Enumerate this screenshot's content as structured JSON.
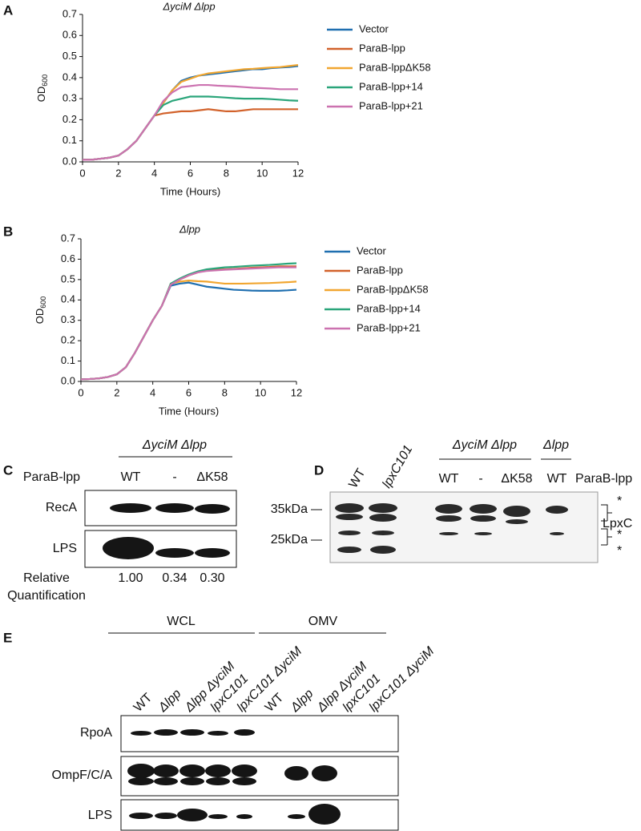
{
  "chart_data": [
    {
      "type": "line",
      "panel": "A",
      "title": "ΔyciM Δlpp",
      "xlabel": "Time (Hours)",
      "ylabel": "OD",
      "ylabel_sub": "600",
      "x": [
        0,
        0.5,
        1,
        1.5,
        2,
        2.5,
        3,
        3.5,
        4,
        4.5,
        5,
        5.5,
        6,
        6.5,
        7,
        7.5,
        8,
        8.5,
        9,
        9.5,
        10,
        10.5,
        11,
        11.5,
        12
      ],
      "xlim": [
        0,
        12
      ],
      "xticks": [
        0,
        2,
        4,
        6,
        8,
        10,
        12
      ],
      "ylim": [
        0,
        0.7
      ],
      "yticks": [
        {
          "value": 0,
          "label": "0.0"
        },
        0.1,
        0.2,
        0.3,
        0.4,
        0.5,
        0.6,
        0.7
      ],
      "series": [
        {
          "name": "Vector",
          "color": "#1f6fb0",
          "values": [
            0.01,
            0.01,
            0.015,
            0.02,
            0.03,
            0.06,
            0.1,
            0.16,
            0.22,
            0.28,
            0.34,
            0.385,
            0.4,
            0.41,
            0.415,
            0.42,
            0.425,
            0.43,
            0.435,
            0.44,
            0.44,
            0.445,
            0.448,
            0.45,
            0.455
          ]
        },
        {
          "name": "ParaB-lpp",
          "color": "#d2622b",
          "values": [
            0.01,
            0.01,
            0.015,
            0.02,
            0.03,
            0.06,
            0.1,
            0.16,
            0.22,
            0.23,
            0.235,
            0.24,
            0.24,
            0.245,
            0.25,
            0.245,
            0.24,
            0.24,
            0.245,
            0.25,
            0.25,
            0.25,
            0.25,
            0.25,
            0.25
          ]
        },
        {
          "name": "ParaB-lppΔK58",
          "color": "#f1a630",
          "values": [
            0.01,
            0.01,
            0.015,
            0.02,
            0.03,
            0.06,
            0.1,
            0.16,
            0.22,
            0.28,
            0.34,
            0.38,
            0.395,
            0.41,
            0.42,
            0.425,
            0.43,
            0.435,
            0.44,
            0.442,
            0.445,
            0.448,
            0.45,
            0.455,
            0.46
          ]
        },
        {
          "name": "ParaB-lpp+14",
          "color": "#2aa57a",
          "values": [
            0.01,
            0.01,
            0.015,
            0.02,
            0.03,
            0.06,
            0.1,
            0.16,
            0.22,
            0.27,
            0.29,
            0.3,
            0.31,
            0.31,
            0.31,
            0.308,
            0.305,
            0.302,
            0.3,
            0.3,
            0.3,
            0.298,
            0.295,
            0.292,
            0.29
          ]
        },
        {
          "name": "ParaB-lpp+21",
          "color": "#cc72b0",
          "values": [
            0.01,
            0.01,
            0.015,
            0.02,
            0.03,
            0.06,
            0.1,
            0.16,
            0.22,
            0.29,
            0.33,
            0.355,
            0.36,
            0.365,
            0.365,
            0.362,
            0.36,
            0.358,
            0.355,
            0.352,
            0.35,
            0.348,
            0.345,
            0.345,
            0.345
          ]
        }
      ]
    },
    {
      "type": "line",
      "panel": "B",
      "title": "Δlpp",
      "xlabel": "Time (Hours)",
      "ylabel": "OD",
      "ylabel_sub": "600",
      "x": [
        0,
        0.5,
        1,
        1.5,
        2,
        2.5,
        3,
        3.5,
        4,
        4.5,
        5,
        5.5,
        6,
        6.5,
        7,
        7.5,
        8,
        8.5,
        9,
        9.5,
        10,
        10.5,
        11,
        11.5,
        12
      ],
      "xlim": [
        0,
        12
      ],
      "xticks": [
        0,
        2,
        4,
        6,
        8,
        10,
        12
      ],
      "ylim": [
        0,
        0.7
      ],
      "yticks": [
        {
          "value": 0,
          "label": "0.0"
        },
        0.1,
        0.2,
        0.3,
        0.4,
        0.5,
        0.6,
        0.7
      ],
      "series": [
        {
          "name": "Vector",
          "color": "#1f6fb0",
          "values": [
            0.01,
            0.012,
            0.015,
            0.022,
            0.035,
            0.07,
            0.14,
            0.22,
            0.3,
            0.37,
            0.47,
            0.48,
            0.485,
            0.475,
            0.465,
            0.46,
            0.455,
            0.45,
            0.448,
            0.446,
            0.445,
            0.445,
            0.445,
            0.447,
            0.45
          ]
        },
        {
          "name": "ParaB-lpp",
          "color": "#d2622b",
          "values": [
            0.01,
            0.012,
            0.015,
            0.022,
            0.035,
            0.07,
            0.14,
            0.22,
            0.3,
            0.37,
            0.475,
            0.5,
            0.52,
            0.535,
            0.545,
            0.548,
            0.55,
            0.552,
            0.555,
            0.558,
            0.56,
            0.562,
            0.565,
            0.565,
            0.565
          ]
        },
        {
          "name": "ParaB-lppΔK58",
          "color": "#f1a630",
          "values": [
            0.01,
            0.012,
            0.015,
            0.022,
            0.035,
            0.07,
            0.14,
            0.22,
            0.3,
            0.37,
            0.48,
            0.49,
            0.495,
            0.492,
            0.49,
            0.485,
            0.48,
            0.48,
            0.48,
            0.481,
            0.482,
            0.483,
            0.485,
            0.487,
            0.49
          ]
        },
        {
          "name": "ParaB-lpp+14",
          "color": "#2aa57a",
          "values": [
            0.01,
            0.012,
            0.015,
            0.022,
            0.035,
            0.07,
            0.14,
            0.22,
            0.3,
            0.37,
            0.48,
            0.505,
            0.525,
            0.54,
            0.55,
            0.555,
            0.56,
            0.562,
            0.565,
            0.568,
            0.57,
            0.572,
            0.575,
            0.578,
            0.58
          ]
        },
        {
          "name": "ParaB-lpp+21",
          "color": "#cc72b0",
          "values": [
            0.01,
            0.012,
            0.015,
            0.022,
            0.035,
            0.07,
            0.14,
            0.22,
            0.3,
            0.37,
            0.475,
            0.5,
            0.52,
            0.535,
            0.542,
            0.545,
            0.548,
            0.55,
            0.552,
            0.554,
            0.556,
            0.558,
            0.56,
            0.56,
            0.56
          ]
        }
      ]
    }
  ],
  "panel_c": {
    "label": "C",
    "group": "ΔyciM Δlpp",
    "construct": "ParaB-lpp",
    "lanes": [
      "WT",
      "-",
      "ΔK58"
    ],
    "rows": [
      "RecA",
      "LPS"
    ],
    "quant_label": [
      "Relative",
      "Quantification"
    ],
    "quant": [
      "1.00",
      "0.34",
      "0.30"
    ]
  },
  "panel_d": {
    "label": "D",
    "lanes_left": [
      "WT",
      "lpxC101"
    ],
    "group1": "ΔyciM Δlpp",
    "group1_lanes": [
      "WT",
      "-",
      "ΔK58"
    ],
    "group2": "Δlpp",
    "group2_lanes": [
      "WT"
    ],
    "construct": "ParaB-lpp",
    "markers": [
      "35kDa",
      "25kDa"
    ],
    "band_labels": [
      "*",
      "LpxC",
      "*",
      "*"
    ]
  },
  "panel_e": {
    "label": "E",
    "groups": [
      "WCL",
      "OMV"
    ],
    "lanes": [
      "WT",
      "Δlpp",
      "Δlpp ΔyciM",
      "lpxC101",
      "lpxC101 ΔyciM"
    ],
    "rows": [
      "RpoA",
      "OmpF/C/A",
      "LPS"
    ]
  }
}
